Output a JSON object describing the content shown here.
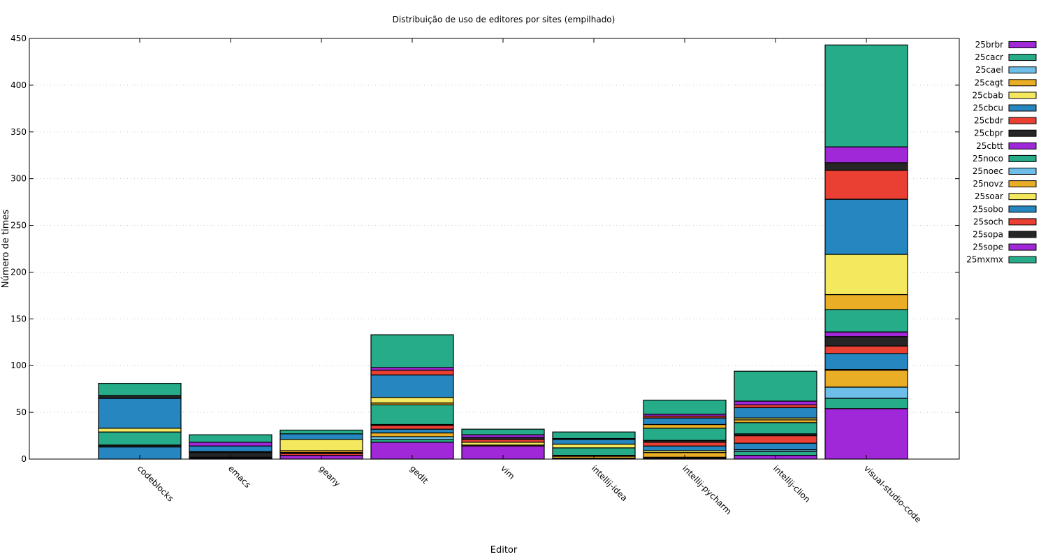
{
  "chart_data": {
    "type": "bar",
    "stacked": true,
    "title": "Distribuição de uso de editores por sites (empilhado)",
    "xlabel": "Editor",
    "ylabel": "Número de times",
    "ylim": [
      0,
      450
    ],
    "yticks": [
      0,
      50,
      100,
      150,
      200,
      250,
      300,
      350,
      400,
      450
    ],
    "grid": "horizontal dotted",
    "legend_position": "outside-right-top",
    "categories": [
      "codeblocks",
      "emacs",
      "geany",
      "gedit",
      "vim",
      "intellij-idea",
      "intellij-pycharm",
      "intellij-clion",
      "visual-studio-code"
    ],
    "series": [
      {
        "name": "25brbr",
        "color": "#a128d8",
        "values": [
          0,
          1,
          4,
          18,
          14,
          1,
          1,
          4,
          54
        ]
      },
      {
        "name": "25cacr",
        "color": "#26ac88",
        "values": [
          0,
          0,
          0,
          3,
          0,
          0,
          0,
          4,
          11
        ]
      },
      {
        "name": "25cael",
        "color": "#6dbfea",
        "values": [
          0,
          1,
          0,
          3,
          0,
          0,
          1,
          2,
          12
        ]
      },
      {
        "name": "25cagt",
        "color": "#eaae26",
        "values": [
          0,
          0,
          0,
          4,
          1,
          2,
          5,
          0,
          18
        ]
      },
      {
        "name": "25cbab",
        "color": "#f4e85e",
        "values": [
          0,
          0,
          0,
          0,
          3,
          0,
          2,
          0,
          1
        ]
      },
      {
        "name": "25cbcu",
        "color": "#2686bf",
        "values": [
          13,
          0,
          0,
          4,
          0,
          0,
          5,
          7,
          17
        ]
      },
      {
        "name": "25cbdr",
        "color": "#ea4034",
        "values": [
          0,
          0,
          2,
          4,
          3,
          0,
          4,
          8,
          8
        ]
      },
      {
        "name": "25cbpr",
        "color": "#262626",
        "values": [
          2,
          5,
          1,
          1,
          2,
          1,
          2,
          2,
          10
        ]
      },
      {
        "name": "25cbtt",
        "color": "#a128d8",
        "values": [
          0,
          0,
          0,
          0,
          3,
          0,
          0,
          0,
          5
        ]
      },
      {
        "name": "25noco",
        "color": "#26ac88",
        "values": [
          14,
          0,
          0,
          21,
          0,
          8,
          13,
          12,
          24
        ]
      },
      {
        "name": "25noec",
        "color": "#6dbfea",
        "values": [
          0,
          0,
          0,
          0,
          0,
          0,
          0,
          0,
          0
        ]
      },
      {
        "name": "25novz",
        "color": "#eaae26",
        "values": [
          0,
          0,
          2,
          2,
          0,
          0,
          4,
          3,
          16
        ]
      },
      {
        "name": "25soar",
        "color": "#f4e85e",
        "values": [
          4,
          1,
          12,
          6,
          0,
          4,
          0,
          2,
          43
        ]
      },
      {
        "name": "25sobo",
        "color": "#2686bf",
        "values": [
          32,
          6,
          6,
          24,
          0,
          5,
          7,
          11,
          59
        ]
      },
      {
        "name": "25soch",
        "color": "#ea4034",
        "values": [
          0,
          0,
          0,
          5,
          0,
          0,
          2,
          3,
          31
        ]
      },
      {
        "name": "25sopa",
        "color": "#262626",
        "values": [
          3,
          0,
          0,
          0,
          0,
          1,
          0,
          0,
          8
        ]
      },
      {
        "name": "25sope",
        "color": "#a128d8",
        "values": [
          0,
          4,
          0,
          3,
          0,
          0,
          2,
          4,
          17
        ]
      },
      {
        "name": "25mxmx",
        "color": "#26ac88",
        "values": [
          13,
          8,
          4,
          35,
          6,
          7,
          15,
          32,
          109
        ]
      }
    ]
  }
}
